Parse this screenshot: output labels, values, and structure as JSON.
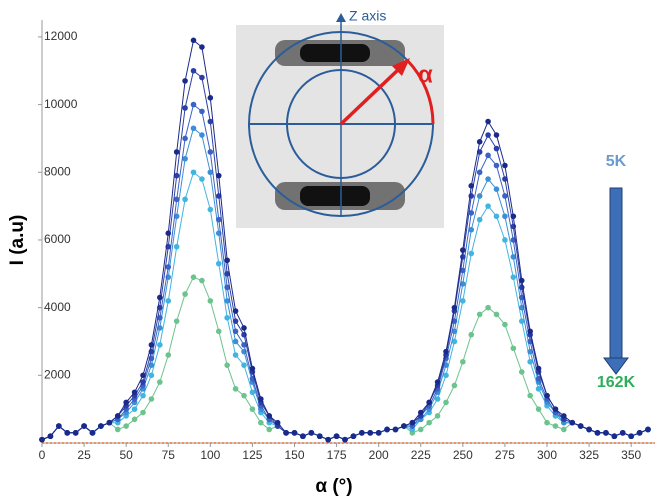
{
  "chart_data": {
    "type": "line",
    "y_label": "I (a.u)",
    "x_label": "α (°)",
    "inset_label": "Z axis",
    "angle_label": "α",
    "top_label": "5K",
    "bottom_label": "162K",
    "xlim": [
      0,
      360
    ],
    "ylim": [
      0,
      12500
    ],
    "xticks": [
      0,
      25,
      50,
      75,
      100,
      125,
      150,
      175,
      200,
      225,
      250,
      275,
      300,
      325,
      350
    ],
    "yticks": [
      2000,
      4000,
      6000,
      8000,
      10000,
      12000
    ],
    "x": [
      0,
      5,
      10,
      15,
      20,
      25,
      30,
      35,
      40,
      45,
      50,
      55,
      60,
      65,
      70,
      75,
      80,
      85,
      90,
      95,
      100,
      105,
      110,
      115,
      120,
      125,
      130,
      135,
      140,
      145,
      150,
      155,
      160,
      165,
      170,
      175,
      180,
      185,
      190,
      195,
      200,
      205,
      210,
      215,
      220,
      225,
      230,
      235,
      240,
      245,
      250,
      255,
      260,
      265,
      270,
      275,
      280,
      285,
      290,
      295,
      300,
      305,
      310,
      315,
      320,
      325,
      330,
      335,
      340,
      345,
      350,
      355,
      360
    ],
    "series": [
      {
        "color": "#6cc38e",
        "values": [
          100,
          200,
          500,
          300,
          300,
          500,
          300,
          500,
          600,
          400,
          500,
          700,
          900,
          1300,
          1800,
          2600,
          3600,
          4400,
          4900,
          4800,
          4200,
          3300,
          2300,
          1600,
          1400,
          1000,
          600,
          400,
          500,
          300,
          300,
          200,
          300,
          200,
          100,
          200,
          100,
          200,
          300,
          300,
          300,
          400,
          400,
          500,
          300,
          400,
          600,
          800,
          1200,
          1700,
          2400,
          3200,
          3800,
          4000,
          3800,
          3500,
          2800,
          2100,
          1400,
          1000,
          600,
          500,
          400,
          600,
          500,
          400,
          300,
          300,
          200,
          300,
          200,
          300,
          400
        ]
      },
      {
        "color": "#42b4e0",
        "values": [
          100,
          200,
          500,
          300,
          300,
          500,
          300,
          500,
          600,
          600,
          800,
          1000,
          1400,
          2000,
          2900,
          4200,
          5800,
          7200,
          8000,
          7800,
          6900,
          5300,
          3700,
          2600,
          2300,
          1500,
          900,
          600,
          500,
          300,
          300,
          200,
          300,
          200,
          100,
          200,
          100,
          200,
          300,
          300,
          300,
          400,
          400,
          500,
          400,
          700,
          900,
          1300,
          2000,
          3000,
          4200,
          5600,
          6600,
          7000,
          6700,
          6000,
          4900,
          3600,
          2400,
          1600,
          1100,
          800,
          600,
          600,
          500,
          400,
          300,
          300,
          200,
          300,
          200,
          300,
          400
        ]
      },
      {
        "color": "#3c8fd4",
        "values": [
          100,
          200,
          500,
          300,
          300,
          500,
          300,
          500,
          600,
          700,
          900,
          1200,
          1600,
          2300,
          3400,
          4900,
          6700,
          8400,
          9300,
          9100,
          8000,
          6200,
          4200,
          3000,
          2700,
          1800,
          1000,
          700,
          500,
          300,
          300,
          200,
          300,
          200,
          100,
          200,
          100,
          200,
          300,
          300,
          300,
          400,
          400,
          500,
          500,
          700,
          1000,
          1500,
          2300,
          3300,
          4700,
          6300,
          7300,
          7800,
          7500,
          6700,
          5500,
          4000,
          2700,
          1800,
          1200,
          900,
          600,
          600,
          500,
          400,
          300,
          300,
          200,
          300,
          200,
          300,
          400
        ]
      },
      {
        "color": "#3a63c4",
        "values": [
          100,
          200,
          500,
          300,
          300,
          500,
          300,
          500,
          600,
          700,
          1000,
          1300,
          1700,
          2500,
          3700,
          5200,
          7200,
          9000,
          10000,
          9800,
          8600,
          6600,
          4600,
          3300,
          2900,
          1900,
          1100,
          700,
          500,
          300,
          300,
          200,
          300,
          200,
          100,
          200,
          100,
          200,
          300,
          300,
          300,
          400,
          400,
          500,
          500,
          800,
          1100,
          1600,
          2500,
          3600,
          5100,
          6800,
          8000,
          8500,
          8200,
          7300,
          6000,
          4300,
          3000,
          1900,
          1300,
          900,
          700,
          600,
          500,
          400,
          300,
          300,
          200,
          300,
          200,
          300,
          400
        ]
      },
      {
        "color": "#2d3fa6",
        "values": [
          100,
          200,
          500,
          300,
          300,
          500,
          300,
          500,
          600,
          800,
          1100,
          1400,
          1800,
          2700,
          4000,
          5800,
          7900,
          9900,
          11000,
          10800,
          9500,
          7300,
          5000,
          3600,
          3200,
          2100,
          1200,
          800,
          500,
          300,
          300,
          200,
          300,
          200,
          100,
          200,
          100,
          200,
          300,
          300,
          300,
          400,
          400,
          500,
          600,
          800,
          1200,
          1700,
          2600,
          3900,
          5500,
          7300,
          8600,
          9100,
          8700,
          7800,
          6400,
          4600,
          3200,
          2100,
          1400,
          1000,
          700,
          600,
          500,
          400,
          300,
          300,
          200,
          300,
          200,
          300,
          400
        ]
      },
      {
        "color": "#1b2a8a",
        "values": [
          100,
          200,
          500,
          300,
          300,
          500,
          300,
          500,
          600,
          800,
          1200,
          1500,
          2000,
          2900,
          4300,
          6200,
          8600,
          10700,
          11900,
          11700,
          10200,
          7900,
          5400,
          3900,
          3400,
          2200,
          1300,
          800,
          600,
          300,
          300,
          200,
          300,
          200,
          100,
          200,
          100,
          200,
          300,
          300,
          300,
          400,
          400,
          500,
          600,
          900,
          1200,
          1800,
          2700,
          4000,
          5700,
          7600,
          8900,
          9500,
          9100,
          8200,
          6700,
          4800,
          3300,
          2200,
          1400,
          1000,
          800,
          600,
          500,
          400,
          300,
          300,
          200,
          300,
          200,
          300,
          400
        ]
      }
    ]
  }
}
